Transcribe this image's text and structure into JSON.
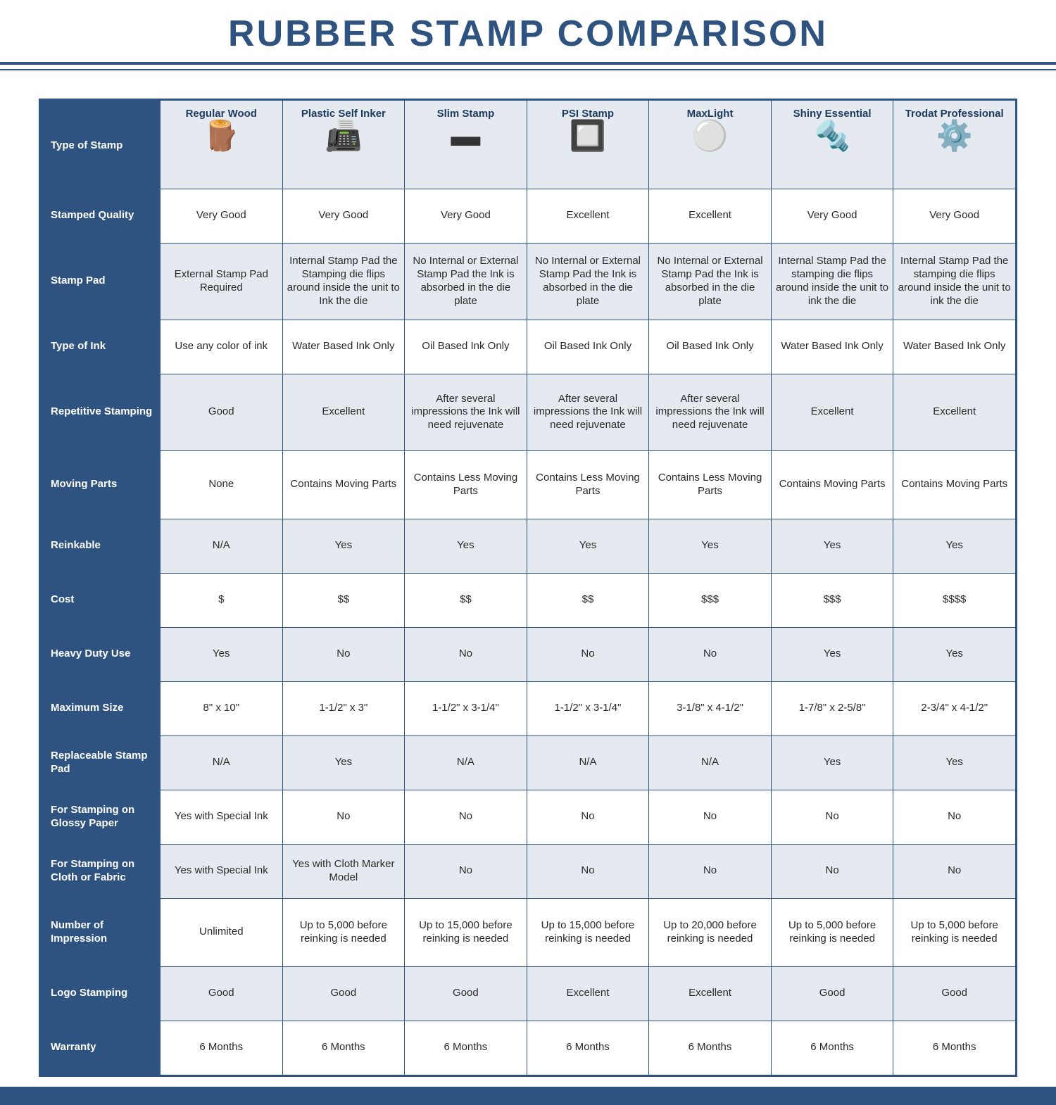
{
  "colors": {
    "brand": "#2f5380",
    "band": "#e4eaf0",
    "white": "#ffffff",
    "text": "#2a2a2a",
    "title": "#2f5380"
  },
  "title": "RUBBER STAMP COMPARISON",
  "corner_label": "Type of Stamp",
  "columns": [
    {
      "name": "Regular Wood"
    },
    {
      "name": "Plastic Self Inker"
    },
    {
      "name": "Slim Stamp"
    },
    {
      "name": "PSI Stamp"
    },
    {
      "name": "MaxLight"
    },
    {
      "name": "Shiny Essential"
    },
    {
      "name": "Trodat Professional"
    }
  ],
  "stamp_icons": [
    "🪵",
    "📠",
    "▬",
    "🔲",
    "⚪",
    "🔩",
    "⚙️"
  ],
  "rows": [
    {
      "label": "Stamped Quality",
      "alt": false,
      "cells": [
        "Very Good",
        "Very Good",
        "Very Good",
        "Excellent",
        "Excellent",
        "Very Good",
        "Very Good"
      ]
    },
    {
      "label": "Stamp Pad",
      "alt": true,
      "cells": [
        "External Stamp Pad Required",
        "Internal Stamp Pad the Stamping die flips around inside the unit to Ink the die",
        "No Internal or External Stamp Pad the Ink is absorbed in the die plate",
        "No Internal or External Stamp Pad the Ink is absorbed in the die plate",
        "No Internal or External Stamp Pad the Ink is absorbed in the die plate",
        "Internal Stamp Pad the stamping die flips around inside the unit to ink the die",
        "Internal Stamp Pad the stamping die flips around inside the unit to ink the die"
      ]
    },
    {
      "label": "Type of Ink",
      "alt": false,
      "cells": [
        "Use any color of ink",
        "Water Based Ink Only",
        "Oil Based Ink Only",
        "Oil Based Ink Only",
        "Oil Based Ink Only",
        "Water Based Ink Only",
        "Water Based Ink Only"
      ]
    },
    {
      "label": "Repetitive Stamping",
      "alt": true,
      "cells": [
        "Good",
        "Excellent",
        "After several impressions the Ink will need rejuvenate",
        "After several impressions the Ink will need rejuvenate",
        "After several impressions the Ink will need rejuvenate",
        "Excellent",
        "Excellent"
      ]
    },
    {
      "label": "Moving Parts",
      "alt": false,
      "cells": [
        "None",
        "Contains Moving Parts",
        "Contains Less Moving Parts",
        "Contains Less Moving Parts",
        "Contains Less Moving Parts",
        "Contains Moving Parts",
        "Contains Moving Parts"
      ]
    },
    {
      "label": "Reinkable",
      "alt": true,
      "cells": [
        "N/A",
        "Yes",
        "Yes",
        "Yes",
        "Yes",
        "Yes",
        "Yes"
      ]
    },
    {
      "label": "Cost",
      "alt": false,
      "cells": [
        "$",
        "$$",
        "$$",
        "$$",
        "$$$",
        "$$$",
        "$$$$"
      ]
    },
    {
      "label": "Heavy Duty Use",
      "alt": true,
      "cells": [
        "Yes",
        "No",
        "No",
        "No",
        "No",
        "Yes",
        "Yes"
      ]
    },
    {
      "label": "Maximum Size",
      "alt": false,
      "cells": [
        "8\" x 10\"",
        "1-1/2\" x 3\"",
        "1-1/2\" x 3-1/4\"",
        "1-1/2\" x 3-1/4\"",
        "3-1/8\" x 4-1/2\"",
        "1-7/8\" x 2-5/8\"",
        "2-3/4\" x 4-1/2\""
      ]
    },
    {
      "label": "Replaceable Stamp Pad",
      "alt": true,
      "cells": [
        "N/A",
        "Yes",
        "N/A",
        "N/A",
        "N/A",
        "Yes",
        "Yes"
      ]
    },
    {
      "label": "For Stamping on Glossy Paper",
      "alt": false,
      "cells": [
        "Yes with Special Ink",
        "No",
        "No",
        "No",
        "No",
        "No",
        "No"
      ]
    },
    {
      "label": "For Stamping on Cloth or Fabric",
      "alt": true,
      "cells": [
        "Yes with Special Ink",
        "Yes with Cloth Marker Model",
        "No",
        "No",
        "No",
        "No",
        "No"
      ]
    },
    {
      "label": "Number of Impression",
      "alt": false,
      "cells": [
        "Unlimited",
        "Up to 5,000 before reinking is needed",
        "Up to 15,000 before reinking is needed",
        "Up to 15,000 before reinking is needed",
        "Up to 20,000 before reinking is needed",
        "Up to 5,000 before reinking is needed",
        "Up to 5,000 before reinking is needed"
      ]
    },
    {
      "label": "Logo Stamping",
      "alt": true,
      "cells": [
        "Good",
        "Good",
        "Good",
        "Excellent",
        "Excellent",
        "Good",
        "Good"
      ]
    },
    {
      "label": "Warranty",
      "alt": false,
      "cells": [
        "6 Months",
        "6 Months",
        "6 Months",
        "6 Months",
        "6 Months",
        "6 Months",
        "6 Months"
      ]
    }
  ],
  "row_heights": {
    "1": "tall",
    "3": "tall",
    "4": "high",
    "12": "high"
  }
}
